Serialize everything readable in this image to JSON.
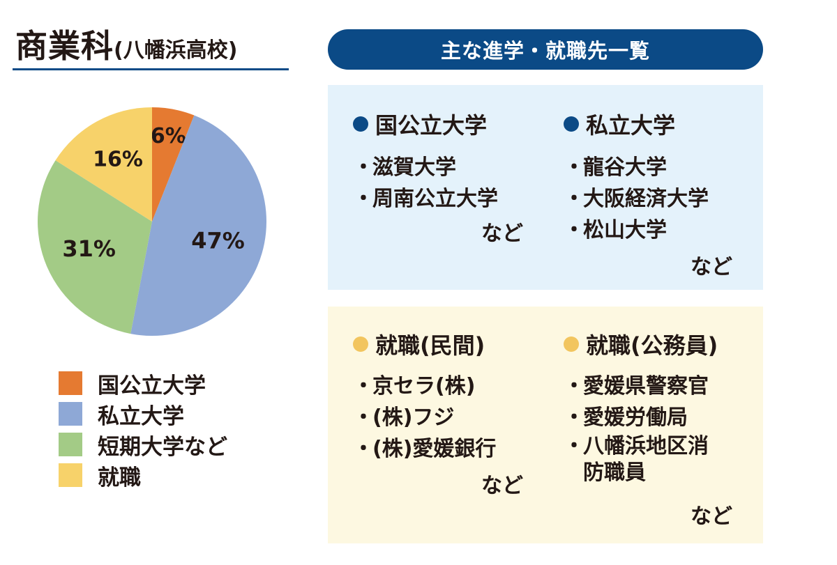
{
  "title": {
    "main": "商業科",
    "sub": "(八幡浜高校)"
  },
  "banner": "主な進学・就職先一覧",
  "chart_data": {
    "type": "pie",
    "categories": [
      "国公立大学",
      "私立大学",
      "短期大学など",
      "就職"
    ],
    "values": [
      6,
      47,
      31,
      16
    ],
    "value_labels": [
      "6%",
      "47%",
      "31%",
      "16%"
    ],
    "colors": [
      "#e57a31",
      "#8ea8d6",
      "#a3cb86",
      "#f7d26a"
    ],
    "start_angle_deg": 0,
    "direction": "clockwise",
    "legend_position": "bottom-left"
  },
  "legend": [
    {
      "label": "国公立大学",
      "color": "#e57a31"
    },
    {
      "label": "私立大学",
      "color": "#8ea8d6"
    },
    {
      "label": "短期大学など",
      "color": "#a3cb86"
    },
    {
      "label": "就職",
      "color": "#f7d26a"
    }
  ],
  "bullet": "・",
  "sections": {
    "national": {
      "heading": "国公立大学",
      "items": [
        "滋賀大学",
        "周南公立大学"
      ],
      "etc": "など"
    },
    "private": {
      "heading": "私立大学",
      "items": [
        "龍谷大学",
        "大阪経済大学",
        "松山大学"
      ],
      "etc": "など"
    },
    "job_private": {
      "heading": "就職(民間)",
      "items": [
        "京セラ(株)",
        "(株)フジ",
        "(株)愛媛銀行"
      ],
      "etc": "など"
    },
    "job_public": {
      "heading": "就職(公務員)",
      "items": [
        "愛媛県警察官",
        "愛媛労働局",
        "八幡浜地区消防職員"
      ],
      "etc": "など"
    }
  },
  "colors": {
    "navy": "#0b4a86",
    "light_blue": "#e4f2fb",
    "light_yellow": "#fdf8e1",
    "yellow_dot": "#f2c55e"
  }
}
